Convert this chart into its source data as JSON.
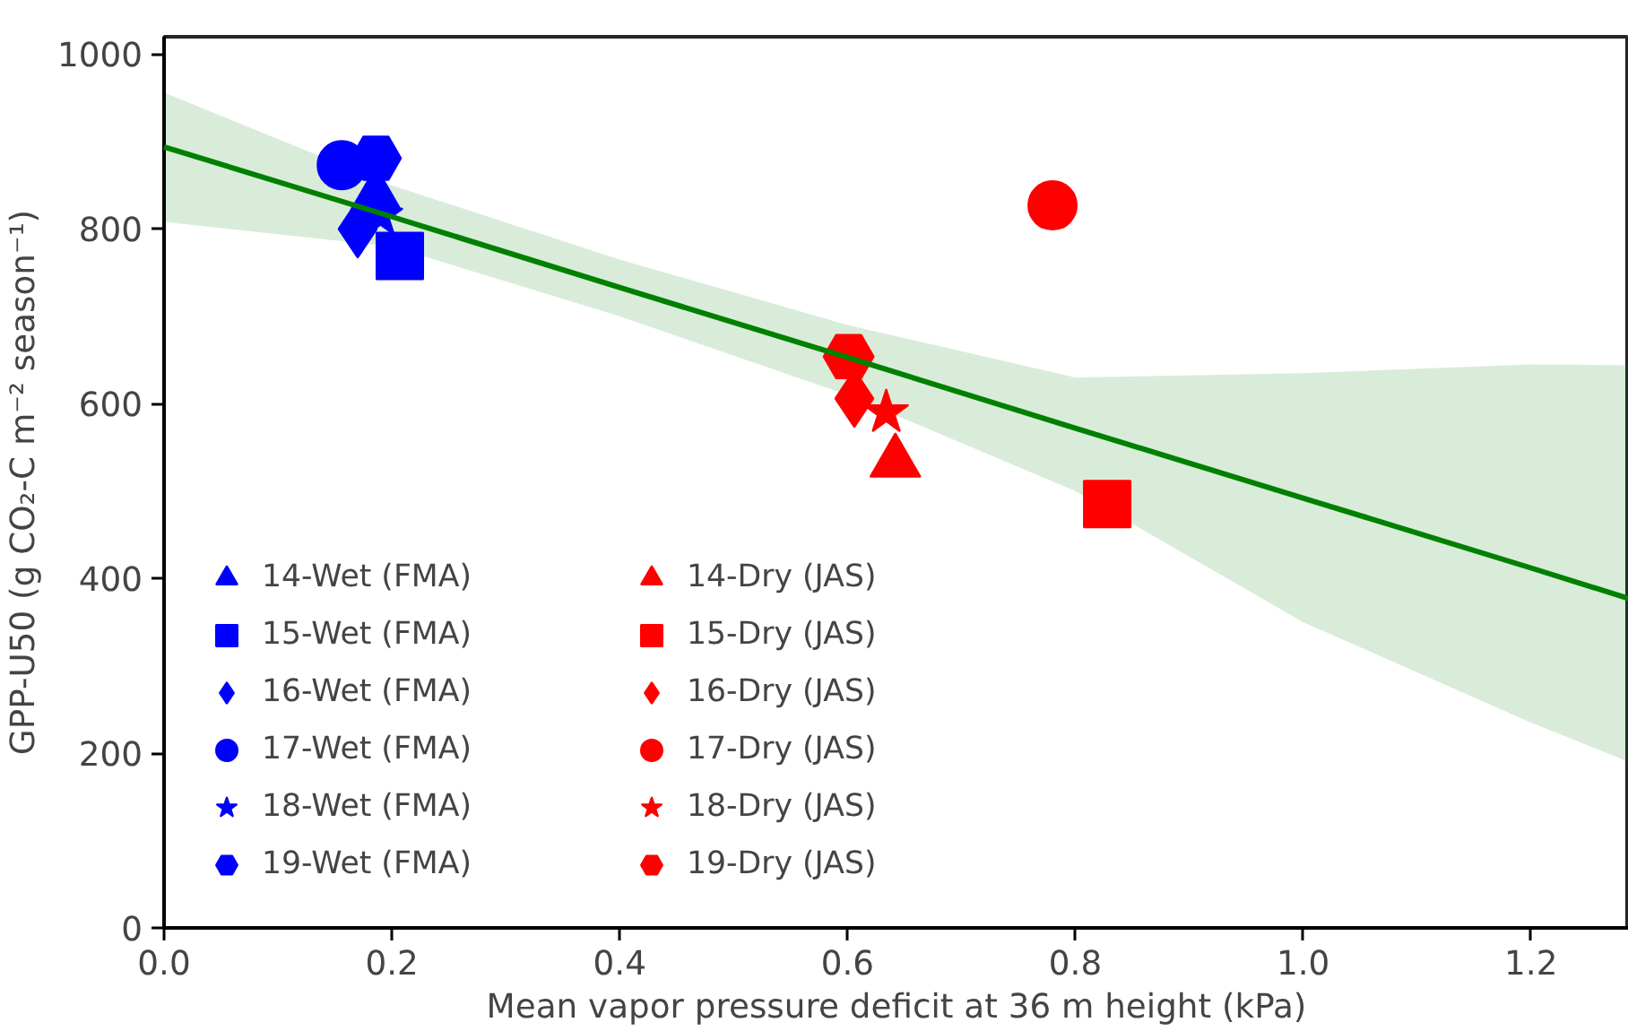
{
  "chart_data": {
    "type": "scatter",
    "xlabel": "Mean vapor pressure deficit at 36 m height (kPa)",
    "ylabel": "GPP-U50 (g CO₂-C m⁻² season⁻¹)",
    "xlim": [
      0,
      1.286
    ],
    "ylim": [
      0,
      1020
    ],
    "xticks": [
      {
        "value": 0,
        "label": "0.0"
      },
      {
        "value": 0.2,
        "label": "0.2"
      },
      {
        "value": 0.4,
        "label": "0.4"
      },
      {
        "value": 0.6,
        "label": "0.6"
      },
      {
        "value": 0.8,
        "label": "0.8"
      },
      {
        "value": 1.0,
        "label": "1.0"
      },
      {
        "value": 1.2,
        "label": "1.2"
      }
    ],
    "yticks": [
      0,
      200,
      400,
      600,
      800,
      1000
    ],
    "grid": false,
    "legend": "bottom left",
    "series": [
      {
        "type": "line",
        "color": "#008000",
        "x": [
          0,
          0.2,
          0.4,
          0.6,
          0.8,
          1.0,
          1.2,
          1.286
        ],
        "values": [
          894,
          814,
          733,
          653,
          572,
          492,
          412,
          377
        ],
        "lower": [
          808,
          780,
          700,
          610,
          500,
          350,
          235,
          190
        ],
        "upper": [
          956,
          850,
          765,
          690,
          630,
          635,
          645,
          644
        ]
      },
      {
        "name": "14-Wet (FMA)",
        "color": "#0000ff",
        "marker": "triangle",
        "x": [
          0.186
        ],
        "values": [
          838
        ]
      },
      {
        "name": "15-Wet (FMA)",
        "color": "#0000ff",
        "marker": "square",
        "x": [
          0.207
        ],
        "values": [
          769
        ]
      },
      {
        "name": "16-Wet (FMA)",
        "color": "#0000ff",
        "marker": "diamond",
        "x": [
          0.17
        ],
        "values": [
          800
        ]
      },
      {
        "name": "17-Wet (FMA)",
        "color": "#0000ff",
        "marker": "circle",
        "x": [
          0.156
        ],
        "values": [
          873
        ]
      },
      {
        "name": "18-Wet (FMA)",
        "color": "#0000ff",
        "marker": "star",
        "x": [
          0.19
        ],
        "values": [
          815
        ]
      },
      {
        "name": "19-Wet (FMA)",
        "color": "#0000ff",
        "x": [
          0.186
        ],
        "values": [
          881
        ]
      },
      {
        "name": "14-Dry (JAS)",
        "color": "#ff0000",
        "marker": "triangle",
        "x": [
          0.642
        ],
        "values": [
          533
        ]
      },
      {
        "name": "15-Dry (JAS)",
        "color": "#ff0000",
        "marker": "square",
        "x": [
          0.828
        ],
        "values": [
          485
        ]
      },
      {
        "name": "16-Dry (JAS)",
        "color": "#ff0000",
        "marker": "diamond",
        "x": [
          0.606
        ],
        "values": [
          606
        ]
      },
      {
        "name": "17-Dry (JAS)",
        "color": "#ff0000",
        "marker": "circle",
        "x": [
          0.78
        ],
        "values": [
          827
        ]
      },
      {
        "name": "18-Dry (JAS)",
        "color": "#ff0000",
        "marker": "star",
        "x": [
          0.634
        ],
        "values": [
          590
        ]
      },
      {
        "name": "19-Dry (JAS)",
        "color": "#ff0000",
        "x": [
          0.601
        ],
        "values": [
          654
        ]
      }
    ]
  }
}
